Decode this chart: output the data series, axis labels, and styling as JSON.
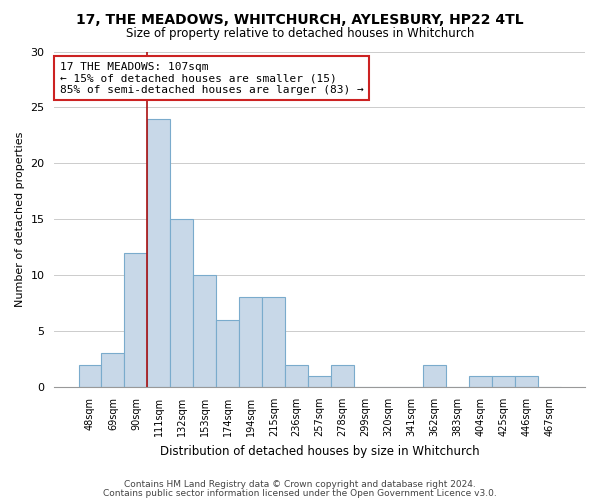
{
  "title1": "17, THE MEADOWS, WHITCHURCH, AYLESBURY, HP22 4TL",
  "title2": "Size of property relative to detached houses in Whitchurch",
  "xlabel": "Distribution of detached houses by size in Whitchurch",
  "ylabel": "Number of detached properties",
  "footer1": "Contains HM Land Registry data © Crown copyright and database right 2024.",
  "footer2": "Contains public sector information licensed under the Open Government Licence v3.0.",
  "bin_labels": [
    "48sqm",
    "69sqm",
    "90sqm",
    "111sqm",
    "132sqm",
    "153sqm",
    "174sqm",
    "194sqm",
    "215sqm",
    "236sqm",
    "257sqm",
    "278sqm",
    "299sqm",
    "320sqm",
    "341sqm",
    "362sqm",
    "383sqm",
    "404sqm",
    "425sqm",
    "446sqm",
    "467sqm"
  ],
  "bar_heights": [
    2,
    3,
    12,
    24,
    15,
    10,
    6,
    8,
    8,
    2,
    1,
    2,
    0,
    0,
    0,
    2,
    0,
    1,
    1,
    1,
    0
  ],
  "bar_color": "#c8d8e8",
  "bar_edge_color": "#7aabcc",
  "vline_color": "#aa1111",
  "vline_x_index": 2.5,
  "annotation_text": "17 THE MEADOWS: 107sqm\n← 15% of detached houses are smaller (15)\n85% of semi-detached houses are larger (83) →",
  "annotation_box_edge": "#cc2222",
  "ylim": [
    0,
    30
  ],
  "yticks": [
    0,
    5,
    10,
    15,
    20,
    25,
    30
  ],
  "background_color": "#ffffff",
  "grid_color": "#cccccc"
}
